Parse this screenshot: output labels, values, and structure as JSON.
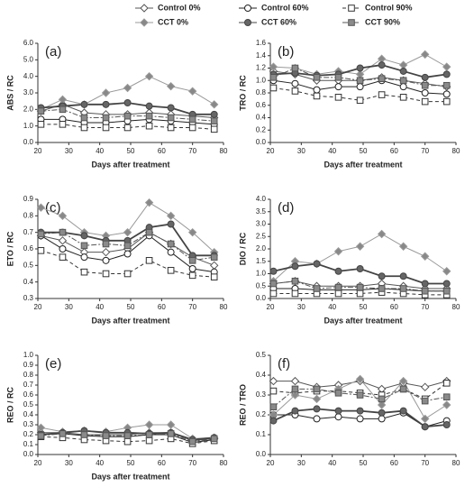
{
  "chart_data": [
    {
      "type": "line",
      "annotation": "(a)",
      "y_label": "ABS / RC",
      "x_label": "Days after treatment",
      "x": [
        21,
        28,
        35,
        42,
        49,
        56,
        63,
        70,
        77
      ],
      "xlim": [
        20,
        80
      ],
      "xticks": [
        20,
        30,
        40,
        50,
        60,
        70,
        80
      ],
      "ylim": [
        0,
        6
      ],
      "yticks": [
        {
          "value": 0,
          "label": "0.0"
        },
        {
          "value": 1,
          "label": "1.0"
        },
        {
          "value": 2,
          "label": "2.0"
        },
        {
          "value": 3,
          "label": "3.0"
        },
        {
          "value": 4,
          "label": "4.0"
        },
        {
          "value": 5,
          "label": "5.0"
        },
        {
          "value": 6,
          "label": "6.0"
        }
      ],
      "series": [
        {
          "name": "Control 0%",
          "color": "#555555",
          "fill": "#ffffff",
          "marker": "diamond",
          "dash": "none",
          "values": [
            1.9,
            2.3,
            1.8,
            1.7,
            1.7,
            1.8,
            1.7,
            1.6,
            1.5
          ]
        },
        {
          "name": "Control 60%",
          "color": "#222222",
          "fill": "#ffffff",
          "marker": "circle",
          "dash": "none",
          "values": [
            1.4,
            1.4,
            1.2,
            1.2,
            1.3,
            1.4,
            1.3,
            1.2,
            1.1
          ]
        },
        {
          "name": "Control 90%",
          "color": "#333333",
          "fill": "#ffffff",
          "marker": "square",
          "dash": "4 3",
          "values": [
            1.1,
            1.1,
            0.9,
            0.9,
            0.9,
            1.0,
            0.9,
            0.9,
            0.8
          ]
        },
        {
          "name": "CCT 0%",
          "color": "#999999",
          "fill": "#888888",
          "marker": "diamond",
          "dash": "none",
          "values": [
            2.0,
            2.6,
            2.3,
            3.0,
            3.3,
            4.0,
            3.4,
            3.1,
            2.3
          ]
        },
        {
          "name": "CCT 60%",
          "color": "#444444",
          "fill": "#666666",
          "marker": "circle",
          "dash": "none",
          "values": [
            2.1,
            2.2,
            2.3,
            2.3,
            2.4,
            2.2,
            2.1,
            1.7,
            1.7
          ]
        },
        {
          "name": "CCT 90%",
          "color": "#555555",
          "fill": "#8a8a8a",
          "marker": "square",
          "dash": "6 2 2 2",
          "values": [
            1.9,
            2.0,
            1.5,
            1.5,
            1.6,
            1.6,
            1.5,
            1.4,
            1.3
          ]
        }
      ]
    },
    {
      "type": "line",
      "annotation": "(b)",
      "y_label": "TRO / RC",
      "x_label": "Days after treatment",
      "x": [
        21,
        28,
        35,
        42,
        49,
        56,
        63,
        70,
        77
      ],
      "xlim": [
        20,
        80
      ],
      "xticks": [
        20,
        30,
        40,
        50,
        60,
        70,
        80
      ],
      "ylim": [
        0,
        1.6
      ],
      "yticks": [
        {
          "value": 0,
          "label": "0.0"
        },
        0.2,
        0.4,
        0.6,
        0.8,
        {
          "value": 1,
          "label": "1.0"
        },
        1.2,
        1.4,
        1.6
      ],
      "series": [
        {
          "name": "Control 0%",
          "color": "#555555",
          "fill": "#ffffff",
          "marker": "diamond",
          "dash": "none",
          "values": [
            1.15,
            1.1,
            1.0,
            1.0,
            1.0,
            1.05,
            1.0,
            0.95,
            0.9
          ]
        },
        {
          "name": "Control 60%",
          "color": "#222222",
          "fill": "#ffffff",
          "marker": "circle",
          "dash": "none",
          "values": [
            1.0,
            0.95,
            0.85,
            0.9,
            0.9,
            1.0,
            0.9,
            0.8,
            0.78
          ]
        },
        {
          "name": "Control 90%",
          "color": "#333333",
          "fill": "#ffffff",
          "marker": "square",
          "dash": "4 3",
          "values": [
            0.88,
            0.83,
            0.75,
            0.73,
            0.68,
            0.77,
            0.73,
            0.66,
            0.66
          ]
        },
        {
          "name": "CCT 0%",
          "color": "#999999",
          "fill": "#888888",
          "marker": "diamond",
          "dash": "none",
          "values": [
            1.22,
            1.2,
            1.1,
            1.15,
            1.1,
            1.35,
            1.25,
            1.42,
            1.22
          ]
        },
        {
          "name": "CCT 60%",
          "color": "#444444",
          "fill": "#666666",
          "marker": "circle",
          "dash": "none",
          "values": [
            1.1,
            1.12,
            1.08,
            1.1,
            1.2,
            1.25,
            1.15,
            1.05,
            1.1
          ]
        },
        {
          "name": "CCT 90%",
          "color": "#555555",
          "fill": "#8a8a8a",
          "marker": "square",
          "dash": "6 2 2 2",
          "values": [
            1.05,
            1.2,
            1.05,
            1.05,
            1.0,
            1.03,
            1.0,
            0.92,
            0.92
          ]
        }
      ]
    },
    {
      "type": "line",
      "annotation": "(c)",
      "y_label": "ETO / RC",
      "x_label": "Days after treatment",
      "x": [
        21,
        28,
        35,
        42,
        49,
        56,
        63,
        70,
        77
      ],
      "xlim": [
        20,
        80
      ],
      "xticks": [
        20,
        30,
        40,
        50,
        60,
        70,
        80
      ],
      "ylim": [
        0.3,
        0.9
      ],
      "yticks": [
        0.3,
        0.4,
        0.5,
        0.6,
        0.7,
        0.8,
        0.9
      ],
      "series": [
        {
          "name": "Control 0%",
          "color": "#555555",
          "fill": "#ffffff",
          "marker": "diamond",
          "dash": "none",
          "values": [
            0.68,
            0.65,
            0.58,
            0.58,
            0.6,
            0.7,
            0.63,
            0.55,
            0.5
          ]
        },
        {
          "name": "Control 60%",
          "color": "#222222",
          "fill": "#ffffff",
          "marker": "circle",
          "dash": "none",
          "values": [
            0.68,
            0.6,
            0.55,
            0.53,
            0.57,
            0.68,
            0.58,
            0.48,
            0.46
          ]
        },
        {
          "name": "Control 90%",
          "color": "#333333",
          "fill": "#ffffff",
          "marker": "square",
          "dash": "4 3",
          "values": [
            0.59,
            0.55,
            0.46,
            0.45,
            0.45,
            0.53,
            0.47,
            0.44,
            0.43
          ]
        },
        {
          "name": "CCT 0%",
          "color": "#999999",
          "fill": "#888888",
          "marker": "diamond",
          "dash": "none",
          "values": [
            0.85,
            0.8,
            0.7,
            0.68,
            0.7,
            0.88,
            0.8,
            0.7,
            0.58
          ]
        },
        {
          "name": "CCT 60%",
          "color": "#444444",
          "fill": "#666666",
          "marker": "circle",
          "dash": "none",
          "values": [
            0.7,
            0.7,
            0.68,
            0.65,
            0.65,
            0.73,
            0.75,
            0.56,
            0.56
          ]
        },
        {
          "name": "CCT 90%",
          "color": "#555555",
          "fill": "#8a8a8a",
          "marker": "square",
          "dash": "6 2 2 2",
          "values": [
            0.69,
            0.7,
            0.62,
            0.63,
            0.62,
            0.7,
            0.63,
            0.53,
            0.55
          ]
        }
      ]
    },
    {
      "type": "line",
      "annotation": "(d)",
      "y_label": "DIO / RC",
      "x_label": "Days after treatment",
      "x": [
        21,
        28,
        35,
        42,
        49,
        56,
        63,
        70,
        77
      ],
      "xlim": [
        20,
        80
      ],
      "xticks": [
        20,
        30,
        40,
        50,
        60,
        70,
        80
      ],
      "ylim": [
        0,
        4
      ],
      "yticks": [
        {
          "value": 0,
          "label": "0.0"
        },
        0.5,
        {
          "value": 1,
          "label": "1.0"
        },
        1.5,
        {
          "value": 2,
          "label": "2.0"
        },
        2.5,
        {
          "value": 3,
          "label": "3.0"
        },
        3.5,
        {
          "value": 4,
          "label": "4.0"
        }
      ],
      "series": [
        {
          "name": "Control 0%",
          "color": "#555555",
          "fill": "#ffffff",
          "marker": "diamond",
          "dash": "none",
          "values": [
            0.6,
            0.7,
            0.5,
            0.5,
            0.5,
            0.6,
            0.5,
            0.4,
            0.4
          ]
        },
        {
          "name": "Control 60%",
          "color": "#222222",
          "fill": "#ffffff",
          "marker": "circle",
          "dash": "none",
          "values": [
            0.4,
            0.4,
            0.35,
            0.35,
            0.35,
            0.4,
            0.35,
            0.3,
            0.3
          ]
        },
        {
          "name": "Control 90%",
          "color": "#333333",
          "fill": "#ffffff",
          "marker": "square",
          "dash": "4 3",
          "values": [
            0.2,
            0.2,
            0.2,
            0.2,
            0.2,
            0.25,
            0.2,
            0.15,
            0.15
          ]
        },
        {
          "name": "CCT 0%",
          "color": "#999999",
          "fill": "#888888",
          "marker": "diamond",
          "dash": "none",
          "values": [
            0.7,
            1.5,
            1.4,
            1.9,
            2.1,
            2.6,
            2.1,
            1.7,
            1.1
          ]
        },
        {
          "name": "CCT 60%",
          "color": "#444444",
          "fill": "#666666",
          "marker": "circle",
          "dash": "none",
          "values": [
            1.1,
            1.3,
            1.4,
            1.1,
            1.2,
            0.9,
            0.9,
            0.6,
            0.6
          ]
        },
        {
          "name": "CCT 90%",
          "color": "#555555",
          "fill": "#8a8a8a",
          "marker": "square",
          "dash": "6 2 2 2",
          "values": [
            0.6,
            0.7,
            0.4,
            0.45,
            0.45,
            0.4,
            0.4,
            0.3,
            0.3
          ]
        }
      ]
    },
    {
      "type": "line",
      "annotation": "(e)",
      "y_label": "REO / RC",
      "x_label": "Days after treatment",
      "x": [
        21,
        28,
        35,
        42,
        49,
        56,
        63,
        70,
        77
      ],
      "xlim": [
        20,
        80
      ],
      "xticks": [
        20,
        30,
        40,
        50,
        60,
        70,
        80
      ],
      "ylim": [
        0,
        1
      ],
      "yticks": [
        {
          "value": 0,
          "label": "0.0"
        },
        0.1,
        0.2,
        0.3,
        0.4,
        0.5,
        0.6,
        0.7,
        0.8,
        0.9,
        {
          "value": 1,
          "label": "1.0"
        }
      ],
      "series": [
        {
          "name": "Control 0%",
          "color": "#555555",
          "fill": "#ffffff",
          "marker": "diamond",
          "dash": "none",
          "values": [
            0.22,
            0.22,
            0.2,
            0.2,
            0.2,
            0.22,
            0.22,
            0.14,
            0.16
          ]
        },
        {
          "name": "Control 60%",
          "color": "#222222",
          "fill": "#ffffff",
          "marker": "circle",
          "dash": "none",
          "values": [
            0.2,
            0.21,
            0.19,
            0.18,
            0.18,
            0.2,
            0.2,
            0.12,
            0.15
          ]
        },
        {
          "name": "Control 90%",
          "color": "#333333",
          "fill": "#ffffff",
          "marker": "square",
          "dash": "4 3",
          "values": [
            0.18,
            0.17,
            0.15,
            0.14,
            0.13,
            0.14,
            0.16,
            0.11,
            0.14
          ]
        },
        {
          "name": "CCT 0%",
          "color": "#999999",
          "fill": "#888888",
          "marker": "diamond",
          "dash": "none",
          "values": [
            0.27,
            0.23,
            0.24,
            0.23,
            0.27,
            0.3,
            0.3,
            0.16,
            0.17
          ]
        },
        {
          "name": "CCT 60%",
          "color": "#444444",
          "fill": "#666666",
          "marker": "circle",
          "dash": "none",
          "values": [
            0.2,
            0.22,
            0.24,
            0.22,
            0.22,
            0.21,
            0.22,
            0.15,
            0.17
          ]
        },
        {
          "name": "CCT 90%",
          "color": "#555555",
          "fill": "#8a8a8a",
          "marker": "square",
          "dash": "6 2 2 2",
          "values": [
            0.19,
            0.21,
            0.2,
            0.19,
            0.19,
            0.2,
            0.21,
            0.13,
            0.16
          ]
        }
      ]
    },
    {
      "type": "line",
      "annotation": "(f)",
      "y_label": "REO / TRO",
      "x": [
        21,
        28,
        35,
        42,
        49,
        56,
        63,
        70,
        77
      ],
      "xlim": [
        20,
        80
      ],
      "xticks": [
        20,
        30,
        40,
        50,
        60,
        70,
        80
      ],
      "ylim": [
        0,
        0.5
      ],
      "yticks": [
        {
          "value": 0,
          "label": "0.0"
        },
        0.1,
        0.2,
        0.3,
        0.4,
        0.5
      ],
      "series": [
        {
          "name": "Control 0%",
          "color": "#555555",
          "fill": "#ffffff",
          "marker": "diamond",
          "dash": "none",
          "values": [
            0.37,
            0.37,
            0.34,
            0.35,
            0.37,
            0.33,
            0.36,
            0.34,
            0.37
          ]
        },
        {
          "name": "Control 60%",
          "color": "#222222",
          "fill": "#ffffff",
          "marker": "circle",
          "dash": "none",
          "values": [
            0.2,
            0.2,
            0.18,
            0.19,
            0.18,
            0.18,
            0.21,
            0.14,
            0.17
          ]
        },
        {
          "name": "Control 90%",
          "color": "#333333",
          "fill": "#ffffff",
          "marker": "square",
          "dash": "4 3",
          "values": [
            0.32,
            0.31,
            0.32,
            0.32,
            0.31,
            0.3,
            0.33,
            0.28,
            0.36
          ]
        },
        {
          "name": "CCT 0%",
          "color": "#999999",
          "fill": "#888888",
          "marker": "diamond",
          "dash": "none",
          "values": [
            0.2,
            0.3,
            0.28,
            0.33,
            0.38,
            0.25,
            0.37,
            0.18,
            0.25
          ]
        },
        {
          "name": "CCT 60%",
          "color": "#444444",
          "fill": "#666666",
          "marker": "circle",
          "dash": "none",
          "values": [
            0.17,
            0.22,
            0.23,
            0.22,
            0.22,
            0.21,
            0.22,
            0.14,
            0.15
          ]
        },
        {
          "name": "CCT 90%",
          "color": "#555555",
          "fill": "#8a8a8a",
          "marker": "square",
          "dash": "6 2 2 2",
          "values": [
            0.24,
            0.33,
            0.33,
            0.31,
            0.3,
            0.28,
            0.33,
            0.27,
            0.29
          ]
        }
      ]
    }
  ]
}
